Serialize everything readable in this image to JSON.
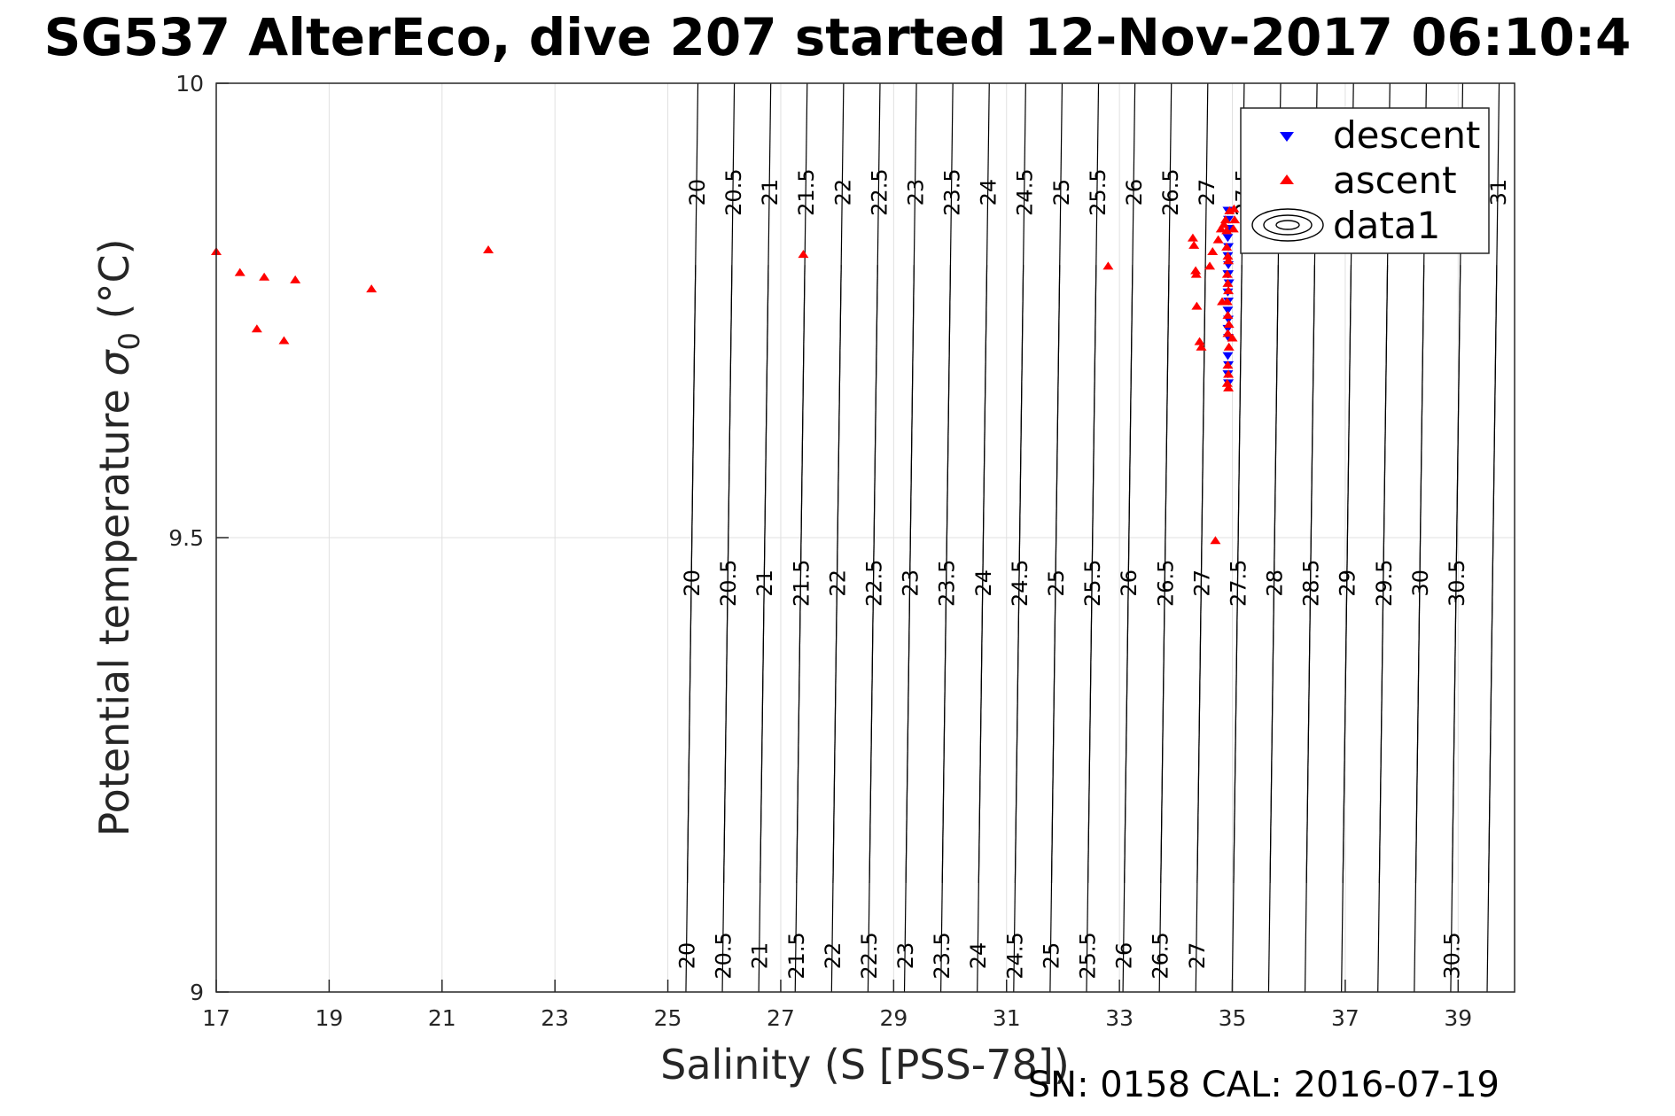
{
  "chart_data": {
    "type": "scatter",
    "title": "SG537 AlterEco, dive 207 started 12-Nov-2017 06:10:4",
    "xlabel": "Salinity (S [PSS-78])",
    "ylabel_main": "Potential temperature ",
    "ylabel_symbol": "σ",
    "ylabel_subscript": "0",
    "ylabel_unit": " (°C)",
    "xlim": [
      17,
      40
    ],
    "ylim": [
      9,
      10
    ],
    "x_ticks": [
      17,
      19,
      21,
      23,
      25,
      27,
      29,
      31,
      33,
      35,
      37,
      39
    ],
    "y_ticks": [
      9,
      9.5,
      10
    ],
    "grid": true,
    "legend_position": "top-right",
    "legend": [
      "descent",
      "ascent",
      "data1"
    ],
    "colors": {
      "descent": "#0000ff",
      "ascent": "#ff0000",
      "contour": "#000000",
      "grid": "#e0e0e0"
    },
    "series": [
      {
        "name": "descent",
        "marker": "down-triangle",
        "points": [
          [
            34.92,
            9.86
          ],
          [
            34.93,
            9.85
          ],
          [
            34.93,
            9.84
          ],
          [
            34.92,
            9.83
          ],
          [
            34.93,
            9.82
          ],
          [
            34.92,
            9.81
          ],
          [
            34.93,
            9.8
          ],
          [
            34.92,
            9.79
          ],
          [
            34.93,
            9.79
          ],
          [
            34.94,
            9.78
          ],
          [
            34.92,
            9.77
          ],
          [
            34.93,
            9.76
          ],
          [
            34.92,
            9.75
          ],
          [
            34.93,
            9.74
          ],
          [
            34.92,
            9.73
          ],
          [
            34.93,
            9.72
          ],
          [
            34.92,
            9.7
          ],
          [
            34.93,
            9.69
          ],
          [
            34.92,
            9.68
          ],
          [
            34.93,
            9.67
          ]
        ]
      },
      {
        "name": "ascent",
        "marker": "up-triangle",
        "points": [
          [
            17.0,
            9.815
          ],
          [
            17.42,
            9.792
          ],
          [
            17.72,
            9.73
          ],
          [
            17.85,
            9.787
          ],
          [
            18.2,
            9.717
          ],
          [
            18.4,
            9.784
          ],
          [
            19.75,
            9.774
          ],
          [
            21.82,
            9.817
          ],
          [
            27.4,
            9.812
          ],
          [
            32.8,
            9.799
          ],
          [
            34.3,
            9.83
          ],
          [
            34.32,
            9.822
          ],
          [
            34.35,
            9.794
          ],
          [
            34.36,
            9.79
          ],
          [
            34.37,
            9.755
          ],
          [
            34.42,
            9.716
          ],
          [
            34.45,
            9.71
          ],
          [
            34.6,
            9.799
          ],
          [
            34.65,
            9.815
          ],
          [
            34.7,
            9.497
          ],
          [
            34.75,
            9.828
          ],
          [
            34.8,
            9.84
          ],
          [
            34.82,
            9.76
          ],
          [
            34.85,
            9.845
          ],
          [
            34.88,
            9.85
          ],
          [
            34.9,
            9.838
          ],
          [
            34.9,
            9.82
          ],
          [
            34.92,
            9.81
          ],
          [
            34.93,
            9.805
          ],
          [
            34.91,
            9.79
          ],
          [
            34.92,
            9.78
          ],
          [
            34.93,
            9.772
          ],
          [
            34.91,
            9.76
          ],
          [
            34.92,
            9.745
          ],
          [
            34.94,
            9.735
          ],
          [
            34.92,
            9.725
          ],
          [
            34.94,
            9.71
          ],
          [
            34.92,
            9.69
          ],
          [
            34.93,
            9.68
          ],
          [
            34.91,
            9.67
          ],
          [
            34.93,
            9.665
          ],
          [
            35.0,
            9.72
          ],
          [
            35.02,
            9.84
          ],
          [
            35.04,
            9.85
          ],
          [
            35.03,
            9.862
          ],
          [
            34.95,
            9.86
          ]
        ]
      }
    ],
    "contour_levels": [
      20,
      20.5,
      21,
      21.5,
      22,
      22.5,
      23,
      23.5,
      24,
      24.5,
      25,
      25.5,
      26,
      26.5,
      27,
      27.5,
      28,
      28.5,
      29,
      29.5,
      30,
      30.5,
      31
    ],
    "contour_label_rows": [
      {
        "level_labels": [
          "20",
          "20.5",
          "21",
          "21.5",
          "22",
          "22.5",
          "23",
          "23.5",
          "24",
          "24.5",
          "25",
          "25.5",
          "26",
          "26.5",
          "27",
          "27.5",
          "28",
          "28.5",
          "29",
          "29.5",
          "30",
          "30.5",
          "31"
        ]
      },
      {
        "level_labels": [
          "20",
          "20.5",
          "21",
          "21.5",
          "22",
          "22.5",
          "23",
          "23.5",
          "24",
          "24.5",
          "25",
          "25.5",
          "26",
          "26.5",
          "27",
          "27.5",
          "28",
          "28.5",
          "29",
          "29.5",
          "30",
          "30.5"
        ]
      },
      {
        "level_labels": [
          "20",
          "20.5",
          "21",
          "21.5",
          "22",
          "22.5",
          "23",
          "23.5",
          "24",
          "24.5",
          "25",
          "25.5",
          "26",
          "26.5",
          "27",
          "30.5"
        ]
      }
    ],
    "footer": "SN: 0158  CAL: 2016-07-19"
  }
}
